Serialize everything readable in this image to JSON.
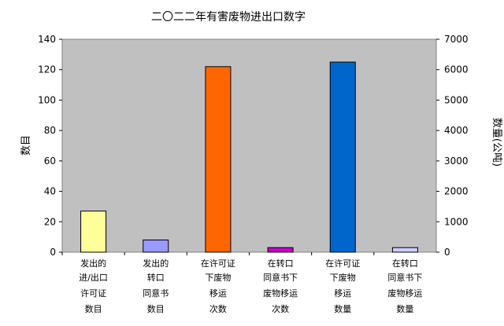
{
  "chart_data": {
    "type": "bar",
    "title": "二〇二二年有害废物进出口数字",
    "ylabel": "数目",
    "y2label": "数量(公吨)",
    "ylim": [
      0,
      140
    ],
    "yticks": [
      0,
      20,
      40,
      60,
      80,
      100,
      120,
      140
    ],
    "y2lim": [
      0,
      7000
    ],
    "y2ticks": [
      0,
      1000,
      2000,
      3000,
      4000,
      5000,
      6000,
      7000
    ],
    "grid": false,
    "plot_background": "#c0c0c0",
    "categories": [
      [
        "发出的",
        "进/出口",
        "许可证",
        "数目"
      ],
      [
        "发出的",
        "转口",
        "同意书",
        "数目"
      ],
      [
        "在许可证",
        "下废物",
        "移运",
        "次数"
      ],
      [
        "在转口",
        "同意书下",
        "废物移运",
        "次数"
      ],
      [
        "在许可证",
        "下废物",
        "移运",
        "数量"
      ],
      [
        "在转口",
        "同意书下",
        "废物移运",
        "数量"
      ]
    ],
    "bars": [
      {
        "value": 27,
        "axis": "left",
        "color": "#ffff99"
      },
      {
        "value": 8,
        "axis": "left",
        "color": "#9999ff"
      },
      {
        "value": 122,
        "axis": "left",
        "color": "#ff6600"
      },
      {
        "value": 3,
        "axis": "left",
        "color": "#cc00cc"
      },
      {
        "value": 6250,
        "axis": "right",
        "color": "#0066cc"
      },
      {
        "value": 150,
        "axis": "right",
        "color": "#ccccff"
      }
    ]
  }
}
